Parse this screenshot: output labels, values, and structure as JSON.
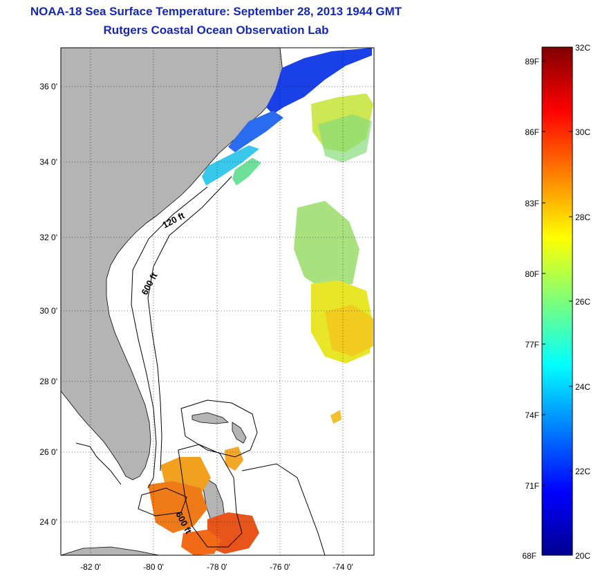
{
  "header": {
    "title": "NOAA-18 Sea Surface Temperature:  September 28, 2013 1944 GMT",
    "subtitle": "Rutgers Coastal Ocean Observation Lab"
  },
  "map": {
    "lat_range": [
      23,
      37.2
    ],
    "lon_range": [
      -83,
      -73
    ],
    "lat_ticks": [
      "24 0'",
      "26 0'",
      "28 0'",
      "30 0'",
      "32 0'",
      "34 0'",
      "36 0'"
    ],
    "lon_ticks": [
      "-82 0'",
      "-80 0'",
      "-78 0'",
      "-76 0'",
      "-74 0'"
    ],
    "depth_labels": [
      "120 ft",
      "600 ft",
      "600 ft"
    ],
    "land_color": "#b4b4b4",
    "grid": "dotted"
  },
  "colorbar": {
    "fahrenheit_labels": [
      "89F",
      "86F",
      "83F",
      "80F",
      "77F",
      "74F",
      "71F",
      "68F"
    ],
    "celsius_labels": [
      "32C",
      "30C",
      "28C",
      "26C",
      "24C",
      "22C",
      "20C"
    ],
    "range_c": [
      20,
      32
    ],
    "colormap": "jet"
  }
}
